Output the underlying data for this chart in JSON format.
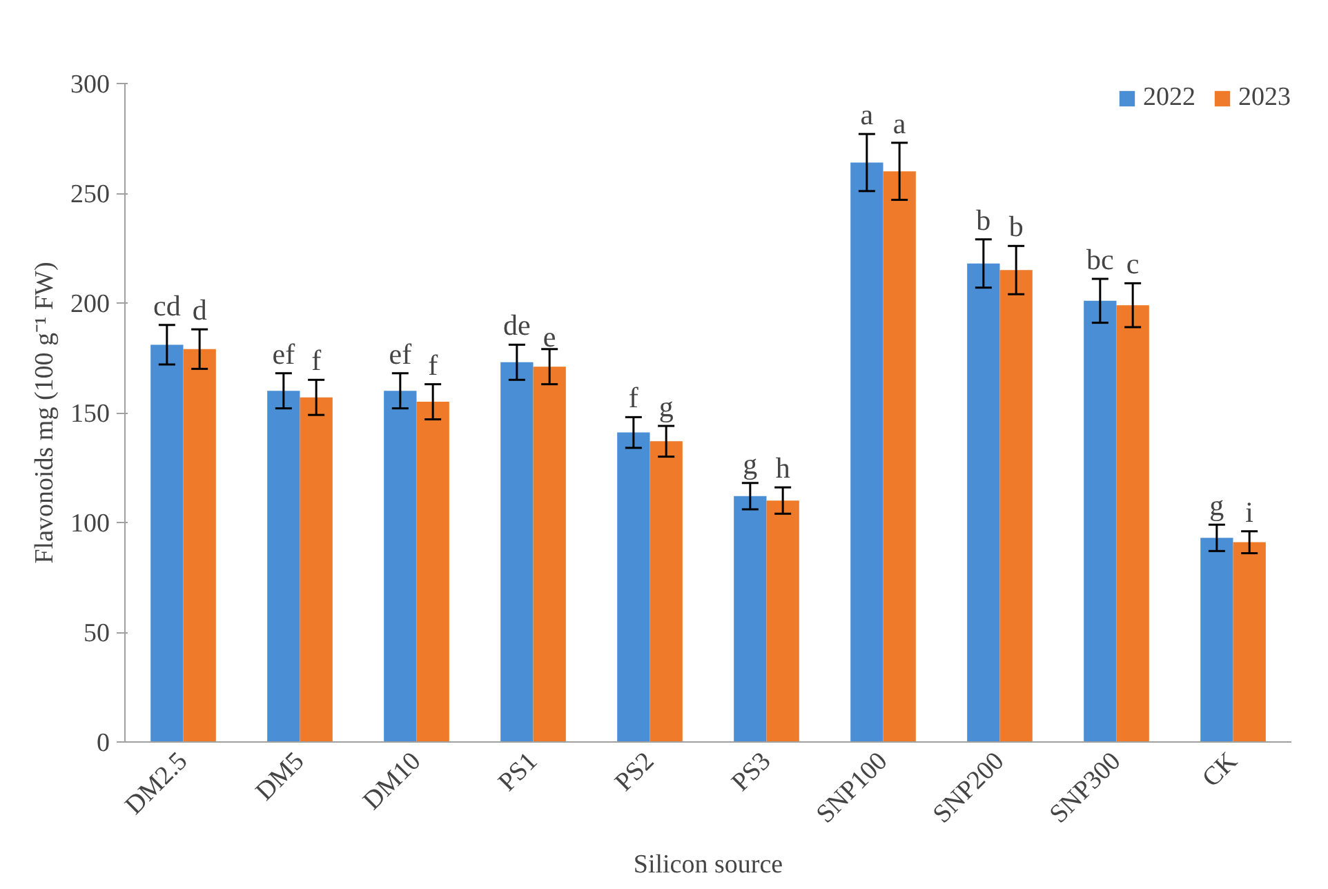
{
  "chart_data": {
    "type": "bar",
    "xlabel": "Silicon source",
    "ylabel": "Flavonoids mg (100 g⁻¹ FW)",
    "categories": [
      "DM2.5",
      "DM5",
      "DM10",
      "PS1",
      "PS2",
      "PS3",
      "SNP100",
      "SNP200",
      "SNP300",
      "CK"
    ],
    "series": [
      {
        "name": "2022",
        "color": "#4a8fd6",
        "values": [
          181,
          160,
          160,
          173,
          141,
          112,
          264,
          218,
          201,
          93
        ],
        "errors": [
          9,
          8,
          8,
          8,
          7,
          6,
          13,
          11,
          10,
          6
        ]
      },
      {
        "name": "2023",
        "color": "#ee7a2a",
        "values": [
          179,
          157,
          155,
          171,
          137,
          110,
          260,
          215,
          199,
          91
        ],
        "errors": [
          9,
          8,
          8,
          8,
          7,
          6,
          13,
          11,
          10,
          5
        ]
      }
    ],
    "ylim": [
      0,
      300
    ],
    "yticks": [
      0,
      50,
      100,
      150,
      200,
      250,
      300
    ],
    "grid": false,
    "legend": "top right",
    "annotations": [
      {
        "text": "cd",
        "x": "DM2.5",
        "y": 190
      },
      {
        "text": "d",
        "x": "DM2.5",
        "y": 188
      },
      {
        "text": "ef",
        "x": "DM5",
        "y": 168
      },
      {
        "text": "f",
        "x": "DM5",
        "y": 165
      },
      {
        "text": "ef",
        "x": "DM10",
        "y": 168
      },
      {
        "text": "f",
        "x": "DM10",
        "y": 163
      },
      {
        "text": "de",
        "x": "PS1",
        "y": 181
      },
      {
        "text": "e",
        "x": "PS1",
        "y": 179
      },
      {
        "text": "f",
        "x": "PS2",
        "y": 148
      },
      {
        "text": "g",
        "x": "PS2",
        "y": 144
      },
      {
        "text": "g",
        "x": "PS3",
        "y": 118
      },
      {
        "text": "h",
        "x": "PS3",
        "y": 116
      },
      {
        "text": "a",
        "x": "SNP100",
        "y": 277
      },
      {
        "text": "a",
        "x": "SNP100",
        "y": 273
      },
      {
        "text": "b",
        "x": "SNP200",
        "y": 229
      },
      {
        "text": "b",
        "x": "SNP200",
        "y": 226
      },
      {
        "text": "bc",
        "x": "SNP300",
        "y": 211
      },
      {
        "text": "c",
        "x": "SNP300",
        "y": 209
      },
      {
        "text": "g",
        "x": "CK",
        "y": 99
      },
      {
        "text": "i",
        "x": "CK",
        "y": 96
      }
    ]
  }
}
